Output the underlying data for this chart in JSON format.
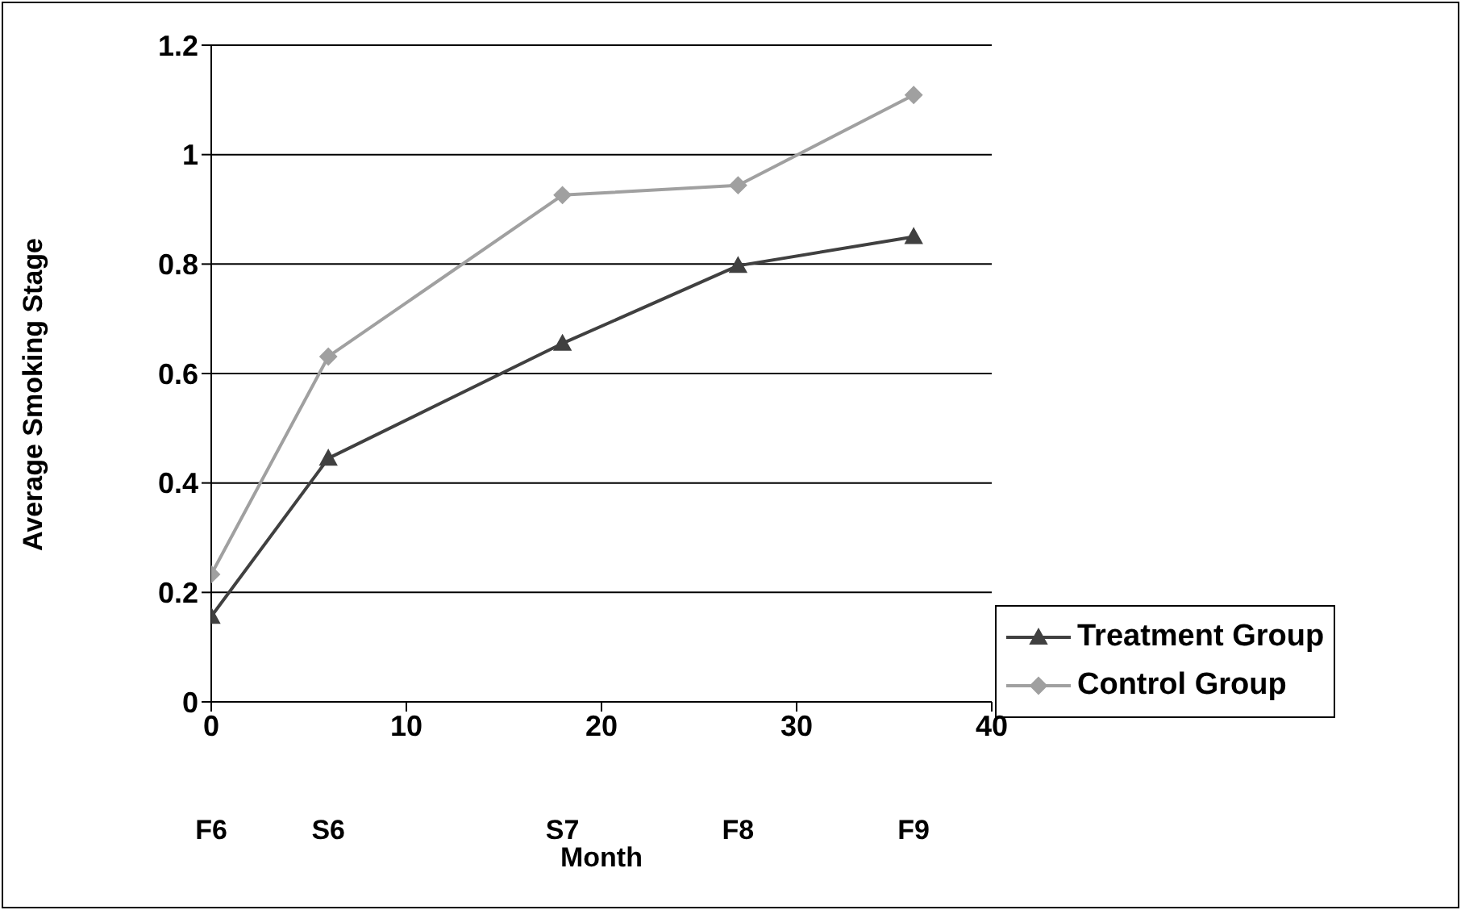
{
  "chart_data": {
    "type": "line",
    "xlabel": "Month",
    "ylabel": "Average Smoking Stage",
    "x": [
      0,
      6,
      18,
      27,
      36
    ],
    "series": [
      {
        "name": "Treatment Group",
        "color": "#404040",
        "marker": "triangle",
        "values": [
          0.156,
          0.445,
          0.655,
          0.797,
          0.85
        ]
      },
      {
        "name": "Control Group",
        "color": "#a0a0a0",
        "marker": "diamond",
        "values": [
          0.233,
          0.631,
          0.926,
          0.944,
          1.109
        ]
      }
    ],
    "xlim": [
      0,
      40
    ],
    "xticks": [
      0,
      10,
      20,
      30,
      40
    ],
    "annotations": [
      "F6",
      "S6",
      "S7",
      "F8",
      "F9"
    ],
    "ylim": [
      0,
      1.2
    ],
    "yticks": [
      0,
      0.2,
      0.4,
      0.6,
      0.8,
      1,
      1.2
    ],
    "grid": "y",
    "legend": "right",
    "line_style": "solid"
  }
}
